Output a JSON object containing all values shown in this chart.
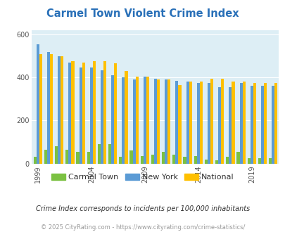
{
  "title": "Carmel Town Violent Crime Index",
  "years": [
    1999,
    2000,
    2001,
    2002,
    2003,
    2004,
    2005,
    2006,
    2007,
    2008,
    2009,
    2010,
    2011,
    2012,
    2013,
    2014,
    2015,
    2016,
    2017,
    2018,
    2019,
    2020,
    2021
  ],
  "carmel_town": [
    30,
    65,
    80,
    65,
    55,
    55,
    90,
    90,
    30,
    60,
    35,
    40,
    55,
    40,
    30,
    35,
    20,
    15,
    30,
    55,
    25,
    25,
    25
  ],
  "new_york": [
    555,
    520,
    500,
    470,
    445,
    445,
    435,
    410,
    400,
    390,
    405,
    395,
    390,
    385,
    380,
    375,
    375,
    355,
    355,
    375,
    360,
    360,
    360
  ],
  "national": [
    510,
    510,
    500,
    475,
    470,
    475,
    475,
    465,
    430,
    405,
    405,
    390,
    390,
    365,
    380,
    380,
    395,
    395,
    380,
    380,
    375,
    375,
    375
  ],
  "bar_width": 0.27,
  "colors": {
    "carmel_town": "#7bc142",
    "new_york": "#5b9bd5",
    "national": "#ffc000"
  },
  "ylim": [
    0,
    620
  ],
  "yticks": [
    0,
    200,
    400,
    600
  ],
  "plot_bg": "#ddeef5",
  "label_years": [
    1999,
    2004,
    2009,
    2014,
    2019
  ],
  "footer_text": "Crime Index corresponds to incidents per 100,000 inhabitants",
  "copyright_text": "© 2025 CityRating.com - https://www.cityrating.com/crime-statistics/"
}
